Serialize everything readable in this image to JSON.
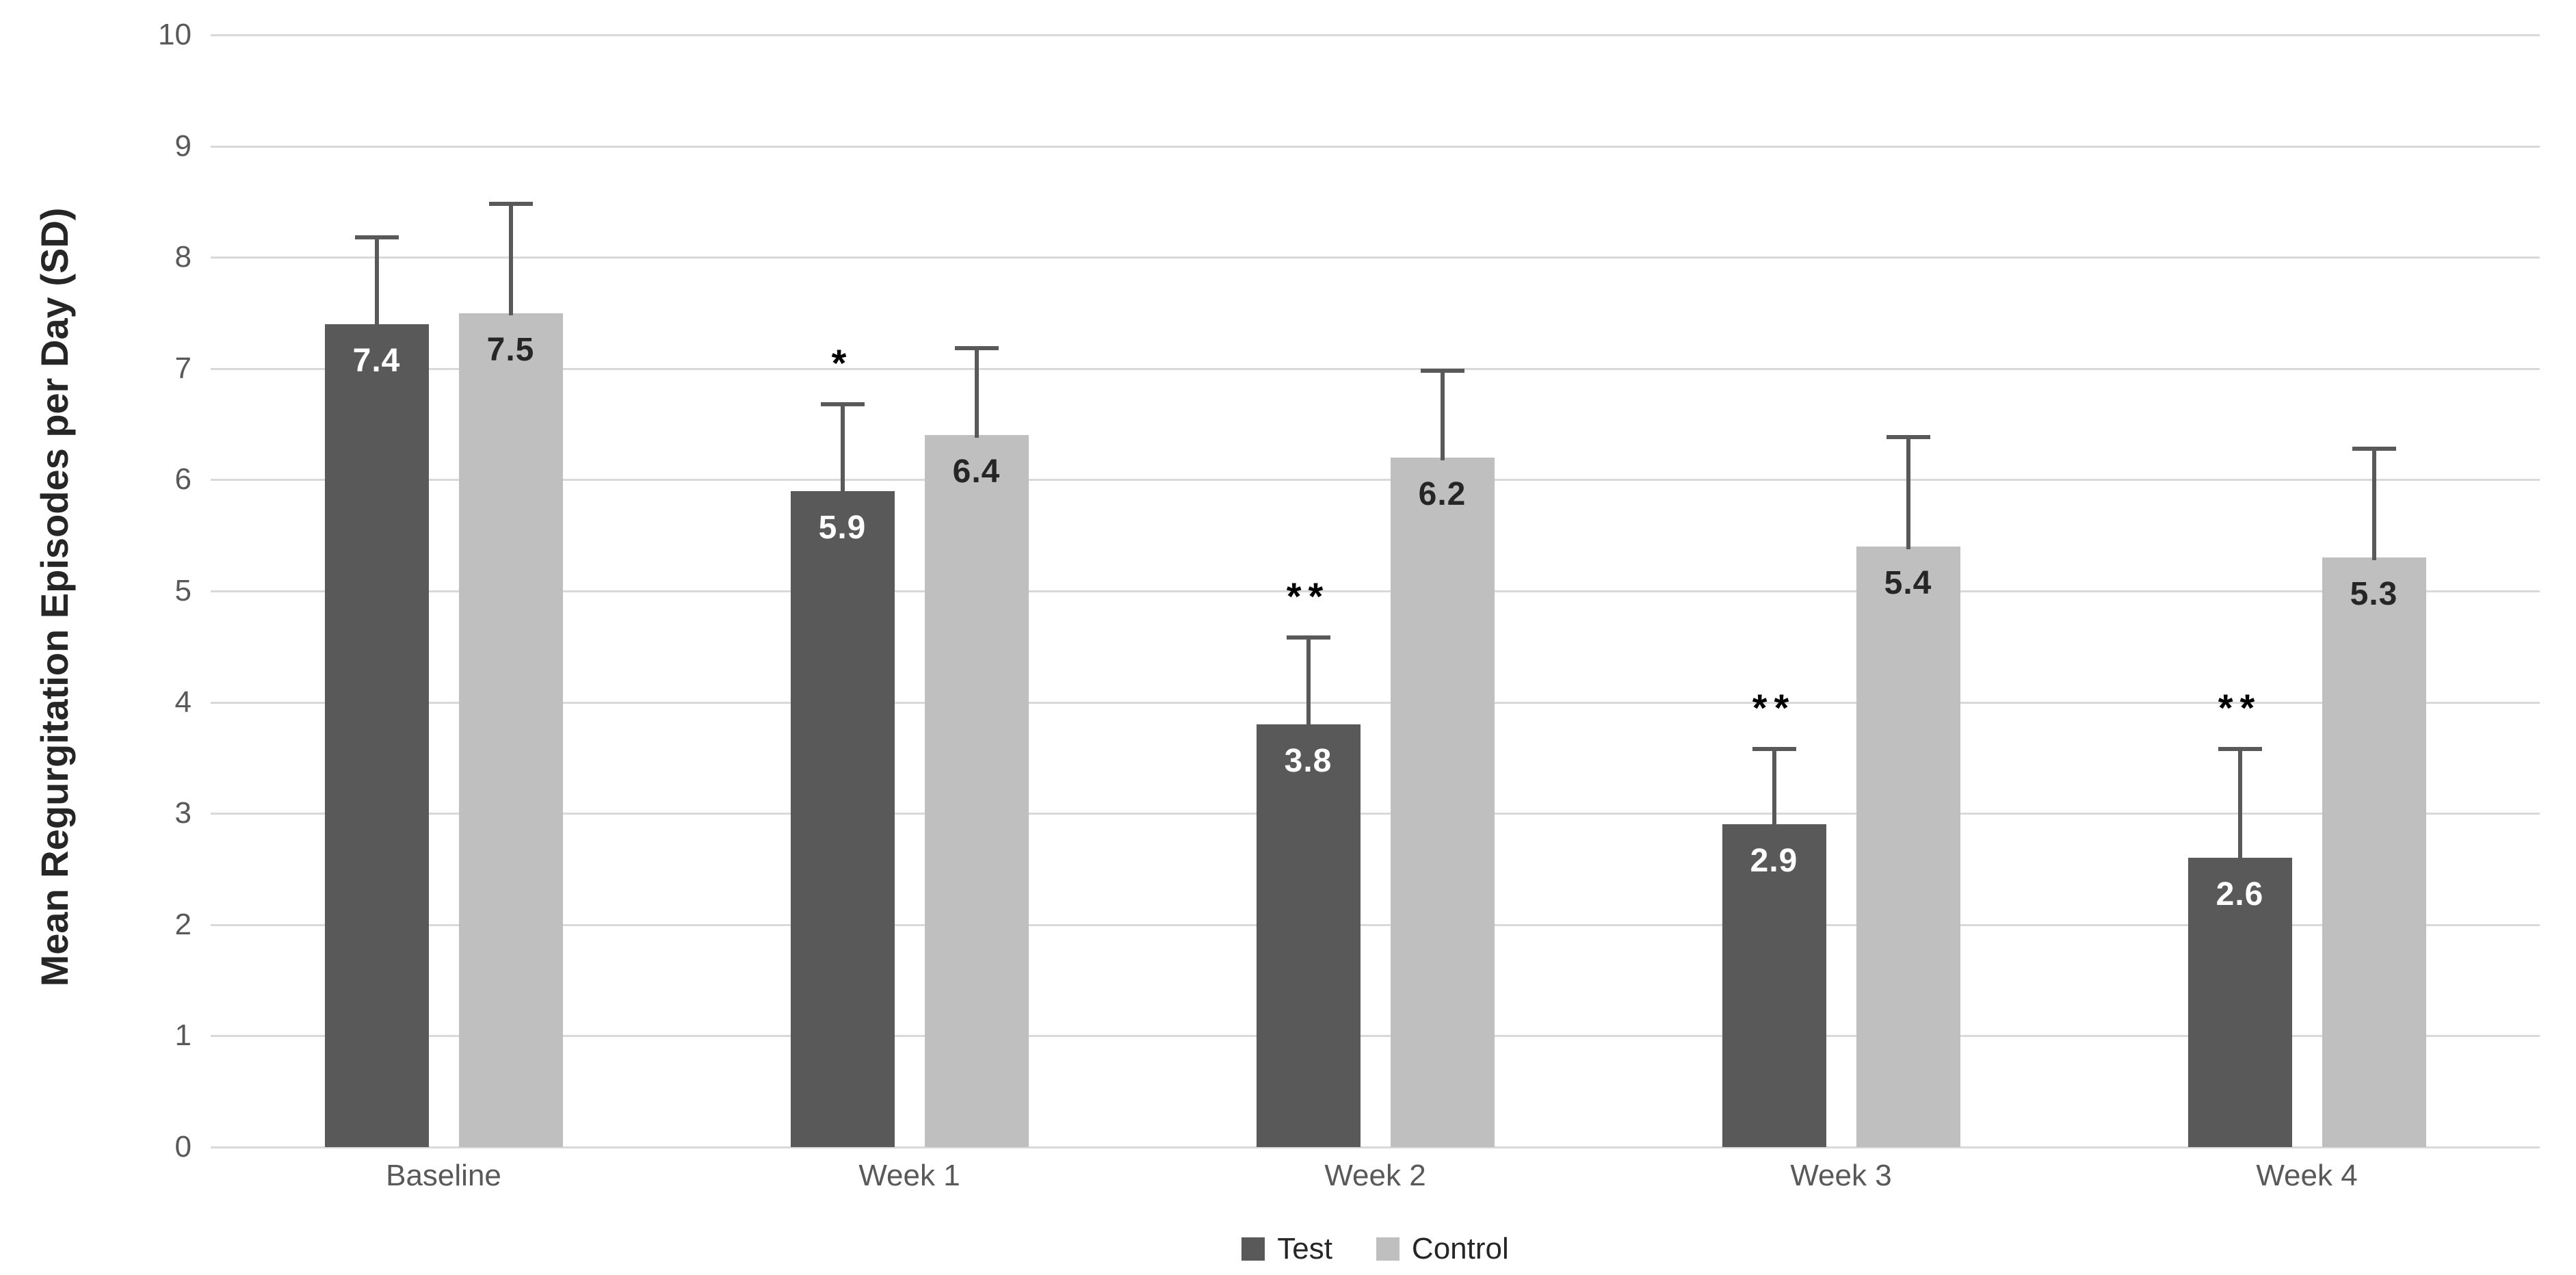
{
  "chart_data": {
    "type": "bar",
    "title": "",
    "categories": [
      "Baseline",
      "Week 1",
      "Week 2",
      "Week 3",
      "Week 4"
    ],
    "series": [
      {
        "name": "Test",
        "color": "#595959",
        "label_color": "#ffffff",
        "values": [
          7.4,
          5.9,
          3.8,
          2.9,
          2.6
        ],
        "error_sd": [
          0.8,
          0.8,
          0.8,
          0.7,
          1.0
        ],
        "annotations": [
          "",
          "*",
          "**",
          "**",
          "**"
        ]
      },
      {
        "name": "Control",
        "color": "#bfbfbf",
        "label_color": "#262626",
        "values": [
          7.5,
          6.4,
          6.2,
          5.4,
          5.3
        ],
        "error_sd": [
          1.0,
          0.8,
          0.8,
          1.0,
          1.0
        ],
        "annotations": [
          "",
          "",
          "",
          "",
          ""
        ]
      }
    ],
    "xlabel": "",
    "ylabel": "Mean Regurgitation Episodes per Day (SD)",
    "ylim": [
      0,
      10
    ],
    "yticks": [
      0,
      1,
      2,
      3,
      4,
      5,
      6,
      7,
      8,
      9,
      10
    ],
    "grid": true,
    "legend_position": "bottom",
    "colors": {
      "gridline": "#d9d9d9",
      "error_bar": "#595959",
      "tick_label": "#595959",
      "axis_title": "#262626",
      "annotation": "#000000"
    }
  }
}
